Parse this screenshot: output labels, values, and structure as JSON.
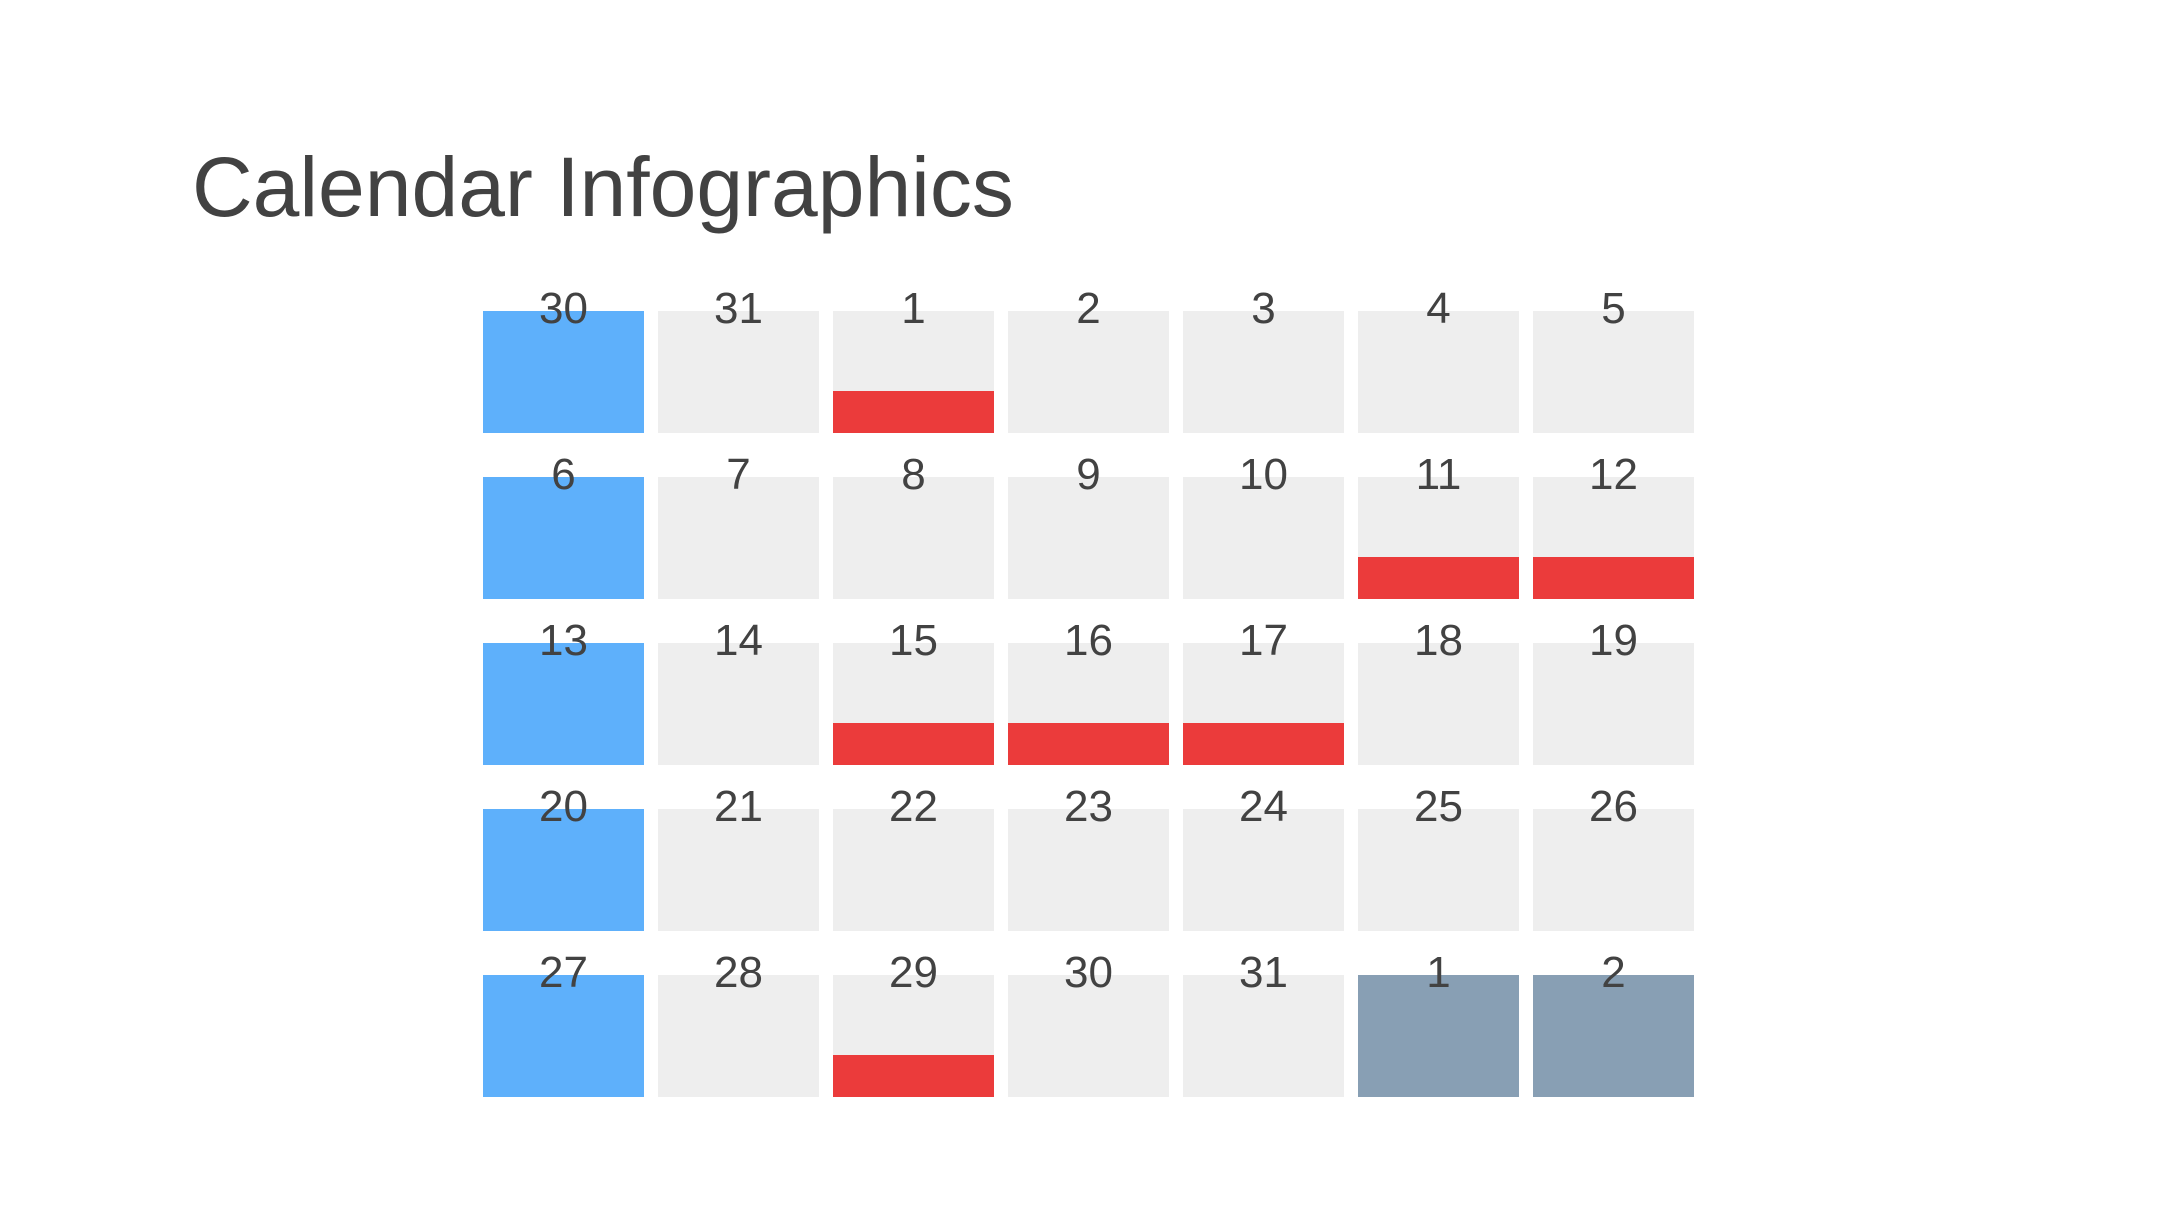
{
  "title": "Calendar Infographics",
  "colors": {
    "column_highlight": "#5eb0fb",
    "default_cell": "#eeeeee",
    "next_month": "#889fb4",
    "event_marker": "#eb3b3b"
  },
  "weeks": [
    [
      {
        "day": "30",
        "style": "highlight",
        "event": false
      },
      {
        "day": "31",
        "style": "default",
        "event": false
      },
      {
        "day": "1",
        "style": "default",
        "event": true
      },
      {
        "day": "2",
        "style": "default",
        "event": false
      },
      {
        "day": "3",
        "style": "default",
        "event": false
      },
      {
        "day": "4",
        "style": "default",
        "event": false
      },
      {
        "day": "5",
        "style": "default",
        "event": false
      }
    ],
    [
      {
        "day": "6",
        "style": "highlight",
        "event": false
      },
      {
        "day": "7",
        "style": "default",
        "event": false
      },
      {
        "day": "8",
        "style": "default",
        "event": false
      },
      {
        "day": "9",
        "style": "default",
        "event": false
      },
      {
        "day": "10",
        "style": "default",
        "event": false
      },
      {
        "day": "11",
        "style": "default",
        "event": true
      },
      {
        "day": "12",
        "style": "default",
        "event": true
      }
    ],
    [
      {
        "day": "13",
        "style": "highlight",
        "event": false
      },
      {
        "day": "14",
        "style": "default",
        "event": false
      },
      {
        "day": "15",
        "style": "default",
        "event": true
      },
      {
        "day": "16",
        "style": "default",
        "event": true
      },
      {
        "day": "17",
        "style": "default",
        "event": true
      },
      {
        "day": "18",
        "style": "default",
        "event": false
      },
      {
        "day": "19",
        "style": "default",
        "event": false
      }
    ],
    [
      {
        "day": "20",
        "style": "highlight",
        "event": false
      },
      {
        "day": "21",
        "style": "default",
        "event": false
      },
      {
        "day": "22",
        "style": "default",
        "event": false
      },
      {
        "day": "23",
        "style": "default",
        "event": false
      },
      {
        "day": "24",
        "style": "default",
        "event": false
      },
      {
        "day": "25",
        "style": "default",
        "event": false
      },
      {
        "day": "26",
        "style": "default",
        "event": false
      }
    ],
    [
      {
        "day": "27",
        "style": "highlight",
        "event": false
      },
      {
        "day": "28",
        "style": "default",
        "event": false
      },
      {
        "day": "29",
        "style": "default",
        "event": true
      },
      {
        "day": "30",
        "style": "default",
        "event": false
      },
      {
        "day": "31",
        "style": "default",
        "event": false
      },
      {
        "day": "1",
        "style": "next-month",
        "event": false
      },
      {
        "day": "2",
        "style": "next-month",
        "event": false
      }
    ]
  ]
}
